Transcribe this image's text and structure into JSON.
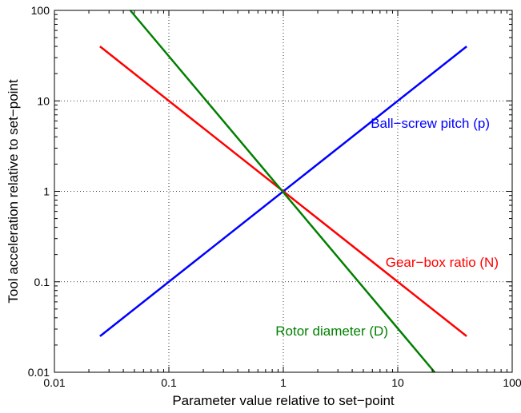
{
  "chart_data": {
    "type": "line",
    "title": "",
    "xlabel": "Parameter value relative to set−point",
    "ylabel": "Tool acceleration relative to set−point",
    "xscale": "log",
    "yscale": "log",
    "xlim": [
      0.01,
      100
    ],
    "ylim": [
      0.01,
      100
    ],
    "grid": "dotted",
    "legend": "none",
    "x_tick_labels": [
      "0.01",
      "0.1",
      "1",
      "10",
      "100"
    ],
    "y_tick_labels": [
      "0.01",
      "0.1",
      "1",
      "10",
      "100"
    ],
    "series": [
      {
        "name": "Ball−screw pitch (p)",
        "color": "#0000ff",
        "x": [
          0.025,
          40
        ],
        "y": [
          0.025,
          40
        ]
      },
      {
        "name": "Gear−box ratio (N)",
        "color": "#ff0000",
        "x": [
          0.025,
          40
        ],
        "y": [
          40,
          0.025
        ]
      },
      {
        "name": "Rotor diameter (D)",
        "color": "#008000",
        "x": [
          0.046,
          21
        ],
        "y": [
          100,
          0.01
        ]
      }
    ]
  }
}
